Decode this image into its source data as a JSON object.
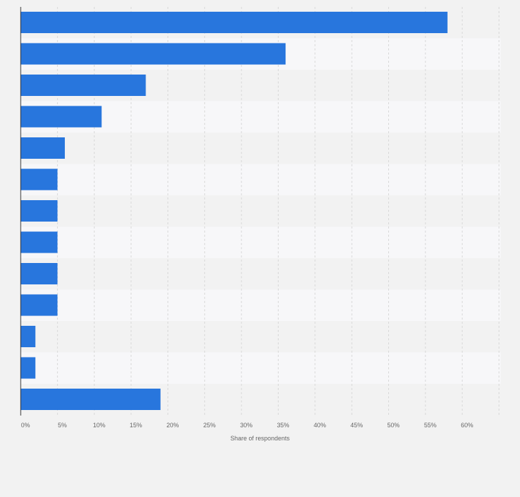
{
  "chart_data": {
    "type": "bar",
    "orientation": "horizontal",
    "categories": [
      "",
      "",
      "",
      "",
      "",
      "",
      "",
      "",
      "",
      "",
      "",
      "",
      ""
    ],
    "values": [
      58,
      36,
      17,
      11,
      6,
      5,
      5,
      5,
      5,
      5,
      2,
      2,
      19
    ],
    "xlabel": "Share of respondents",
    "ylabel": "",
    "xlim": [
      0,
      65
    ],
    "x_ticks": [
      "0%",
      "5%",
      "10%",
      "15%",
      "20%",
      "25%",
      "30%",
      "35%",
      "40%",
      "45%",
      "50%",
      "55%",
      "60%"
    ],
    "grid": true,
    "bar_color": "#2876dd",
    "band_colors": [
      "#f2f2f2",
      "#f7f7f9"
    ]
  }
}
